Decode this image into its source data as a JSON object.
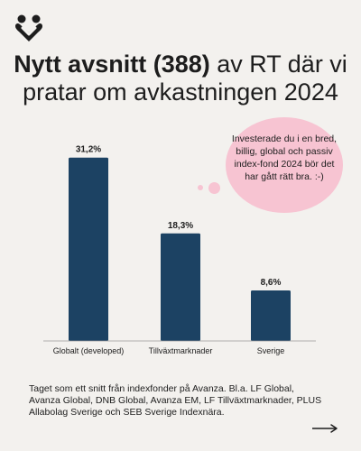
{
  "title": {
    "bold_part": "Nytt avsnitt (388)",
    "rest_part": " av RT där vi pratar om avkastningen 2024"
  },
  "bubble": {
    "text": "Investerade du i en bred, billig, global och passiv index-fond 2024 bör det har gått rätt bra. :-)"
  },
  "footnote": "Taget som ett snitt från indexfonder på Avanza. Bl.a. LF Global, Avanza Global, DNB Global, Avanza EM, LF Tillväxtmarknader, PLUS Allabolag Sverige och SEB Sverige Indexnära.",
  "colors": {
    "bar": "#1c4263",
    "background": "#f3f1ee",
    "bubble": "#f7c4d2",
    "logo": "#1d1d1d"
  },
  "icons": {
    "logo": "people-heart-logo",
    "next": "arrow-right-icon"
  },
  "chart_data": {
    "type": "bar",
    "categories": [
      "Globalt (developed)",
      "Tillväxtmarknader",
      "Sverige"
    ],
    "values": [
      31.2,
      18.3,
      8.6
    ],
    "value_labels": [
      "31,2%",
      "18,3%",
      "8,6%"
    ],
    "ylim": [
      0,
      33
    ],
    "grid": false,
    "xlabel": "",
    "ylabel": ""
  }
}
